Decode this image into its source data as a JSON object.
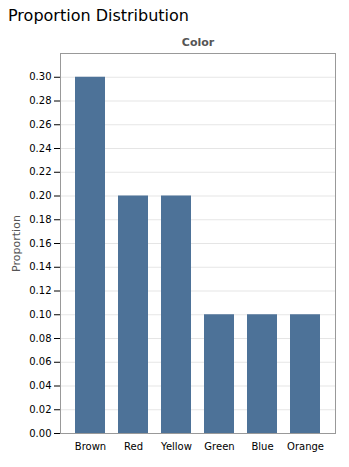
{
  "chart_data": {
    "type": "bar",
    "title": "Proportion Distribution",
    "xlabel": "Color",
    "ylabel": "Proportion",
    "categories": [
      "Brown",
      "Red",
      "Yellow",
      "Green",
      "Blue",
      "Orange"
    ],
    "values": [
      0.3,
      0.2,
      0.2,
      0.1,
      0.1,
      0.1
    ],
    "color": "#4d7298",
    "ylim": [
      0.0,
      0.32
    ],
    "yticks": [
      {
        "value": 0.0,
        "label": "0.00"
      },
      0.02,
      0.04,
      0.06,
      0.08,
      {
        "value": 0.1,
        "label": "0.10"
      },
      0.12,
      0.14,
      0.16,
      0.18,
      {
        "value": 0.2,
        "label": "0.20"
      },
      0.22,
      0.24,
      0.26,
      0.28,
      {
        "value": 0.3,
        "label": "0.30"
      }
    ],
    "grid": true
  }
}
